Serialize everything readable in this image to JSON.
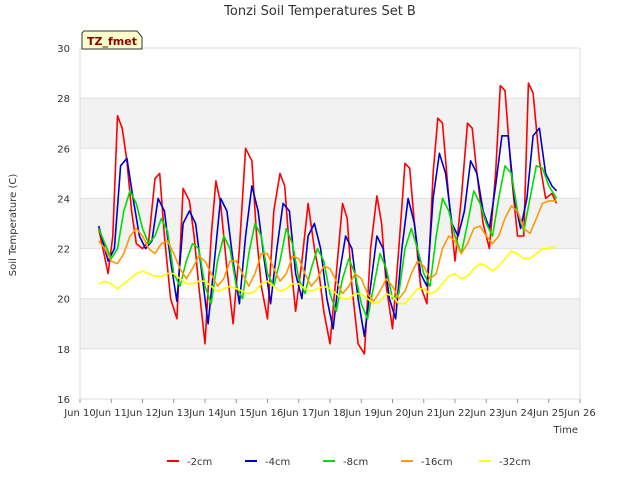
{
  "chart_data": {
    "type": "line",
    "title": "Tonzi Soil Temperatures Set B",
    "xlabel": "Time",
    "ylabel": "Soil Temperature (C)",
    "tag": "TZ_fmet",
    "xlim": [
      10.0,
      26.0
    ],
    "ylim": [
      16,
      30
    ],
    "x_ticks": [
      10,
      11,
      12,
      13,
      14,
      15,
      16,
      17,
      18,
      19,
      20,
      21,
      22,
      23,
      24,
      25,
      26
    ],
    "x_tick_labels": [
      "Jun 10",
      "Jun 11",
      "Jun 12",
      "Jun 13",
      "Jun 14",
      "Jun 15",
      "Jun 16",
      "Jun 17",
      "Jun 18",
      "Jun 19",
      "Jun 20",
      "Jun 21",
      "Jun 22",
      "Jun 23",
      "Jun 24",
      "Jun 25",
      "Jun 26"
    ],
    "y_ticks": [
      16,
      18,
      20,
      22,
      24,
      26,
      28,
      30
    ],
    "y_tick_labels": [
      "16",
      "18",
      "20",
      "22",
      "24",
      "26",
      "28",
      "30"
    ],
    "legend_position": "bottom",
    "grid": true,
    "series": [
      {
        "name": "-2cm",
        "color": "#ff0000",
        "x": [
          10.6,
          10.9,
          11.05,
          11.2,
          11.35,
          11.5,
          11.65,
          11.8,
          12.0,
          12.2,
          12.4,
          12.55,
          12.7,
          12.9,
          13.1,
          13.3,
          13.5,
          13.65,
          13.8,
          14.0,
          14.2,
          14.35,
          14.5,
          14.7,
          14.9,
          15.1,
          15.3,
          15.5,
          15.65,
          15.8,
          16.0,
          16.2,
          16.4,
          16.55,
          16.7,
          16.9,
          17.1,
          17.3,
          17.5,
          17.65,
          17.8,
          18.0,
          18.2,
          18.4,
          18.55,
          18.7,
          18.9,
          19.1,
          19.3,
          19.5,
          19.65,
          19.8,
          20.0,
          20.2,
          20.4,
          20.55,
          20.7,
          20.9,
          21.1,
          21.3,
          21.45,
          21.6,
          21.8,
          22.0,
          22.2,
          22.4,
          22.55,
          22.7,
          22.9,
          23.1,
          23.3,
          23.45,
          23.6,
          23.8,
          24.0,
          24.2,
          24.35,
          24.5,
          24.7,
          24.9,
          25.1,
          25.25
        ],
        "y": [
          22.8,
          21.0,
          22.5,
          27.3,
          26.8,
          25.5,
          23.5,
          22.2,
          22.0,
          22.3,
          24.8,
          25.0,
          22.5,
          20.0,
          19.2,
          24.4,
          23.9,
          22.5,
          20.5,
          18.2,
          22.5,
          24.7,
          23.8,
          21.2,
          19.0,
          22.0,
          26.0,
          25.5,
          22.5,
          20.5,
          19.2,
          23.5,
          25.0,
          24.5,
          22.0,
          19.5,
          21.5,
          23.8,
          22.0,
          21.0,
          19.5,
          18.2,
          21.0,
          23.8,
          23.2,
          20.5,
          18.2,
          17.8,
          22.0,
          24.1,
          23.0,
          20.5,
          18.8,
          22.0,
          25.4,
          25.2,
          23.0,
          20.5,
          19.8,
          25.0,
          27.2,
          27.0,
          24.0,
          21.5,
          24.0,
          27.0,
          26.8,
          25.0,
          23.0,
          22.0,
          25.0,
          28.5,
          28.3,
          25.0,
          22.5,
          22.5,
          28.6,
          28.2,
          25.5,
          24.0,
          24.2,
          23.8
        ]
      },
      {
        "name": "-4cm",
        "color": "#0000cc",
        "x": [
          10.6,
          10.9,
          11.1,
          11.3,
          11.5,
          11.7,
          11.9,
          12.1,
          12.3,
          12.5,
          12.7,
          12.9,
          13.1,
          13.3,
          13.5,
          13.7,
          13.9,
          14.1,
          14.3,
          14.5,
          14.7,
          14.9,
          15.1,
          15.3,
          15.5,
          15.7,
          15.9,
          16.1,
          16.3,
          16.5,
          16.7,
          16.9,
          17.1,
          17.3,
          17.5,
          17.7,
          17.9,
          18.1,
          18.3,
          18.5,
          18.7,
          18.9,
          19.1,
          19.3,
          19.5,
          19.7,
          19.9,
          20.1,
          20.3,
          20.5,
          20.7,
          20.9,
          21.1,
          21.3,
          21.5,
          21.7,
          21.9,
          22.1,
          22.3,
          22.5,
          22.7,
          22.9,
          23.1,
          23.3,
          23.5,
          23.7,
          23.9,
          24.1,
          24.3,
          24.5,
          24.7,
          24.9,
          25.1,
          25.25
        ],
        "y": [
          22.9,
          21.5,
          22.0,
          25.3,
          25.6,
          24.0,
          22.5,
          22.0,
          22.3,
          24.0,
          23.5,
          21.5,
          19.9,
          23.0,
          23.5,
          23.0,
          21.0,
          19.0,
          21.5,
          24.0,
          23.5,
          21.5,
          19.8,
          22.5,
          24.5,
          23.5,
          21.5,
          19.8,
          22.0,
          23.8,
          23.5,
          21.0,
          20.0,
          22.5,
          23.0,
          22.0,
          20.0,
          18.8,
          21.0,
          22.5,
          22.0,
          20.0,
          18.5,
          20.5,
          22.5,
          22.0,
          20.0,
          19.2,
          22.0,
          24.0,
          23.0,
          21.0,
          20.5,
          24.0,
          25.8,
          25.0,
          23.0,
          22.5,
          23.5,
          25.5,
          25.0,
          23.5,
          22.8,
          24.5,
          26.5,
          26.5,
          24.0,
          22.8,
          24.0,
          26.5,
          26.8,
          25.0,
          24.5,
          24.3
        ]
      },
      {
        "name": "-8cm",
        "color": "#00dd00",
        "x": [
          10.6,
          10.8,
          11.0,
          11.2,
          11.4,
          11.6,
          11.8,
          12.0,
          12.2,
          12.4,
          12.6,
          12.8,
          13.0,
          13.2,
          13.4,
          13.6,
          13.8,
          14.0,
          14.2,
          14.4,
          14.6,
          14.8,
          15.0,
          15.2,
          15.4,
          15.6,
          15.8,
          16.0,
          16.2,
          16.4,
          16.6,
          16.8,
          17.0,
          17.2,
          17.4,
          17.6,
          17.8,
          18.0,
          18.2,
          18.4,
          18.6,
          18.8,
          19.0,
          19.2,
          19.4,
          19.6,
          19.8,
          20.0,
          20.2,
          20.4,
          20.6,
          20.8,
          21.0,
          21.2,
          21.4,
          21.6,
          21.8,
          22.0,
          22.2,
          22.4,
          22.6,
          22.8,
          23.0,
          23.2,
          23.4,
          23.6,
          23.8,
          24.0,
          24.2,
          24.4,
          24.6,
          24.8,
          25.0,
          25.25
        ],
        "y": [
          22.8,
          22.2,
          21.6,
          22.0,
          23.5,
          24.3,
          23.8,
          22.8,
          22.2,
          22.5,
          23.2,
          22.7,
          21.0,
          20.5,
          21.5,
          22.2,
          22.0,
          20.5,
          19.8,
          21.5,
          22.5,
          22.0,
          20.5,
          20.0,
          21.8,
          23.0,
          22.5,
          21.0,
          20.5,
          21.5,
          22.8,
          22.2,
          20.8,
          20.2,
          21.2,
          22.0,
          21.5,
          20.2,
          19.5,
          20.8,
          21.6,
          21.0,
          19.8,
          19.2,
          20.5,
          21.8,
          21.2,
          20.0,
          20.2,
          22.0,
          22.8,
          22.0,
          21.0,
          20.5,
          22.5,
          24.0,
          23.5,
          22.5,
          21.8,
          23.0,
          24.3,
          23.8,
          23.0,
          22.5,
          24.0,
          25.3,
          25.0,
          23.5,
          22.7,
          24.0,
          25.3,
          25.2,
          24.5,
          24.0
        ]
      },
      {
        "name": "-16cm",
        "color": "#ff9900",
        "x": [
          10.6,
          10.8,
          11.0,
          11.2,
          11.4,
          11.6,
          11.8,
          12.0,
          12.2,
          12.4,
          12.6,
          12.8,
          13.0,
          13.2,
          13.4,
          13.6,
          13.8,
          14.0,
          14.2,
          14.4,
          14.6,
          14.8,
          15.0,
          15.2,
          15.4,
          15.6,
          15.8,
          16.0,
          16.2,
          16.4,
          16.6,
          16.8,
          17.0,
          17.2,
          17.4,
          17.6,
          17.8,
          18.0,
          18.2,
          18.4,
          18.6,
          18.8,
          19.0,
          19.2,
          19.4,
          19.6,
          19.8,
          20.0,
          20.2,
          20.4,
          20.6,
          20.8,
          21.0,
          21.2,
          21.4,
          21.6,
          21.8,
          22.0,
          22.2,
          22.4,
          22.6,
          22.8,
          23.0,
          23.2,
          23.4,
          23.6,
          23.8,
          24.0,
          24.2,
          24.4,
          24.6,
          24.8,
          25.0,
          25.25
        ],
        "y": [
          22.3,
          22.0,
          21.5,
          21.4,
          21.8,
          22.5,
          22.8,
          22.5,
          22.0,
          21.8,
          22.2,
          22.3,
          21.8,
          21.2,
          20.8,
          21.2,
          21.7,
          21.5,
          21.0,
          20.5,
          20.8,
          21.5,
          21.5,
          21.0,
          20.5,
          21.0,
          21.8,
          21.8,
          21.2,
          20.7,
          21.0,
          21.7,
          21.6,
          21.0,
          20.5,
          20.8,
          21.3,
          21.2,
          20.7,
          20.2,
          20.5,
          21.0,
          20.8,
          20.2,
          19.9,
          20.3,
          20.8,
          20.5,
          20.0,
          20.3,
          21.0,
          21.5,
          21.3,
          20.8,
          21.0,
          22.0,
          22.5,
          22.3,
          21.8,
          22.2,
          22.8,
          22.9,
          22.5,
          22.2,
          22.5,
          23.2,
          23.7,
          23.5,
          22.8,
          22.6,
          23.2,
          23.8,
          23.9,
          23.9
        ]
      },
      {
        "name": "-32cm",
        "color": "#ffff00",
        "x": [
          10.6,
          10.8,
          11.0,
          11.2,
          11.4,
          11.6,
          11.8,
          12.0,
          12.2,
          12.4,
          12.6,
          12.8,
          13.0,
          13.2,
          13.4,
          13.6,
          13.8,
          14.0,
          14.2,
          14.4,
          14.6,
          14.8,
          15.0,
          15.2,
          15.4,
          15.6,
          15.8,
          16.0,
          16.2,
          16.4,
          16.6,
          16.8,
          17.0,
          17.2,
          17.4,
          17.6,
          17.8,
          18.0,
          18.2,
          18.4,
          18.6,
          18.8,
          19.0,
          19.2,
          19.4,
          19.6,
          19.8,
          20.0,
          20.2,
          20.4,
          20.6,
          20.8,
          21.0,
          21.2,
          21.4,
          21.6,
          21.8,
          22.0,
          22.2,
          22.4,
          22.6,
          22.8,
          23.0,
          23.2,
          23.4,
          23.6,
          23.8,
          24.0,
          24.2,
          24.4,
          24.6,
          24.8,
          25.0,
          25.25
        ],
        "y": [
          20.6,
          20.7,
          20.6,
          20.4,
          20.6,
          20.8,
          21.0,
          21.1,
          21.0,
          20.9,
          20.9,
          21.0,
          21.0,
          20.8,
          20.6,
          20.6,
          20.7,
          20.7,
          20.5,
          20.3,
          20.4,
          20.5,
          20.4,
          20.3,
          20.2,
          20.3,
          20.6,
          20.7,
          20.5,
          20.3,
          20.4,
          20.6,
          20.6,
          20.4,
          20.3,
          20.4,
          20.5,
          20.4,
          20.2,
          20.0,
          20.0,
          20.2,
          20.2,
          20.0,
          19.8,
          19.9,
          20.2,
          20.1,
          19.8,
          19.8,
          20.1,
          20.4,
          20.4,
          20.2,
          20.3,
          20.6,
          20.9,
          21.0,
          20.8,
          20.9,
          21.2,
          21.4,
          21.3,
          21.1,
          21.3,
          21.6,
          21.9,
          21.8,
          21.6,
          21.6,
          21.8,
          22.0,
          22.0,
          22.1
        ]
      }
    ]
  }
}
